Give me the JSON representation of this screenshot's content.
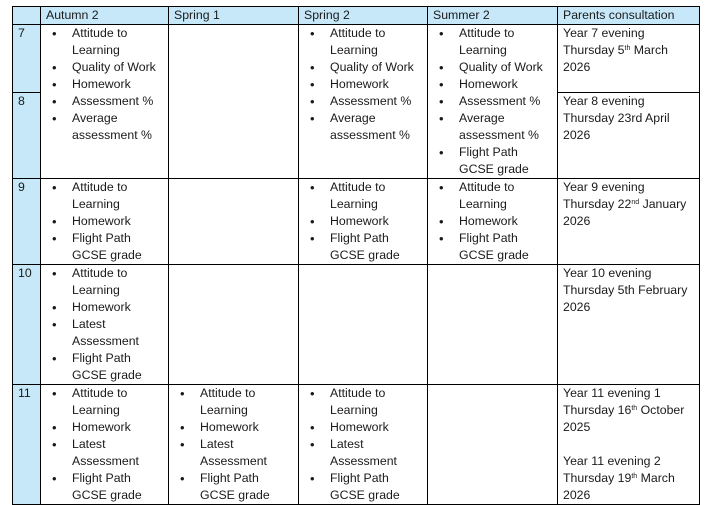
{
  "headers": [
    "",
    "Autumn 2",
    "Spring 1",
    "Spring 2",
    "Summer 2",
    "Parents consultation"
  ],
  "colors": {
    "header_fill": "#c6e8f8",
    "border": "#000000"
  },
  "rows": [
    {
      "year": "7",
      "terms": [
        [
          "Attitude to Learning",
          "Quality of Work",
          "Homework",
          "Assessment %",
          "Average assessment %"
        ],
        [],
        [
          "Attitude to Learning",
          "Quality of Work",
          "Homework",
          "Assessment %",
          "Average assessment %"
        ],
        [
          "Attitude to Learning",
          "Quality of Work",
          "Homework",
          "Assessment %",
          "Average assessment %",
          "Flight Path GCSE grade"
        ]
      ],
      "terms_span_next_row": true,
      "consultation": [
        {
          "title": "Year 7 evening",
          "date": [
            {
              "t": "Thursday 5"
            },
            {
              "t": "th",
              "sup": true
            },
            {
              "t": " March 2026"
            }
          ]
        }
      ]
    },
    {
      "year": "8",
      "consultation": [
        {
          "title": "Year 8 evening",
          "date": [
            {
              "t": "Thursday 23rd April 2026"
            }
          ]
        }
      ]
    },
    {
      "year": "9",
      "terms": [
        [
          "Attitude to Learning",
          "Homework",
          "Flight Path GCSE grade"
        ],
        [],
        [
          "Attitude to Learning",
          "Homework",
          "Flight Path GCSE grade"
        ],
        [
          "Attitude to Learning",
          "Homework",
          "Flight Path GCSE grade"
        ]
      ],
      "consultation": [
        {
          "title": "Year 9 evening",
          "date": [
            {
              "t": "Thursday 22"
            },
            {
              "t": "nd",
              "sup": true
            },
            {
              "t": " January 2026"
            }
          ]
        }
      ]
    },
    {
      "year": "10",
      "terms": [
        [
          "Attitude to Learning",
          "Homework",
          "Latest Assessment",
          "Flight Path GCSE grade"
        ],
        [],
        [],
        []
      ],
      "consultation": [
        {
          "title": "Year 10 evening",
          "date": [
            {
              "t": "Thursday 5th February 2026"
            }
          ]
        }
      ]
    },
    {
      "year": "11",
      "terms": [
        [
          "Attitude to Learning",
          "Homework",
          "Latest Assessment",
          "Flight Path GCSE grade"
        ],
        [
          "Attitude to Learning",
          "Homework",
          "Latest Assessment",
          "Flight Path GCSE grade"
        ],
        [
          "Attitude to Learning",
          "Homework",
          "Latest Assessment",
          "Flight Path GCSE grade"
        ],
        []
      ],
      "consultation": [
        {
          "title": "Year 11 evening 1",
          "date": [
            {
              "t": "Thursday 16"
            },
            {
              "t": "th",
              "sup": true
            },
            {
              "t": " October 2025"
            }
          ]
        },
        {
          "title": "Year 11 evening 2",
          "date": [
            {
              "t": "Thursday 19"
            },
            {
              "t": "th",
              "sup": true
            },
            {
              "t": " March 2026"
            }
          ]
        }
      ]
    }
  ]
}
